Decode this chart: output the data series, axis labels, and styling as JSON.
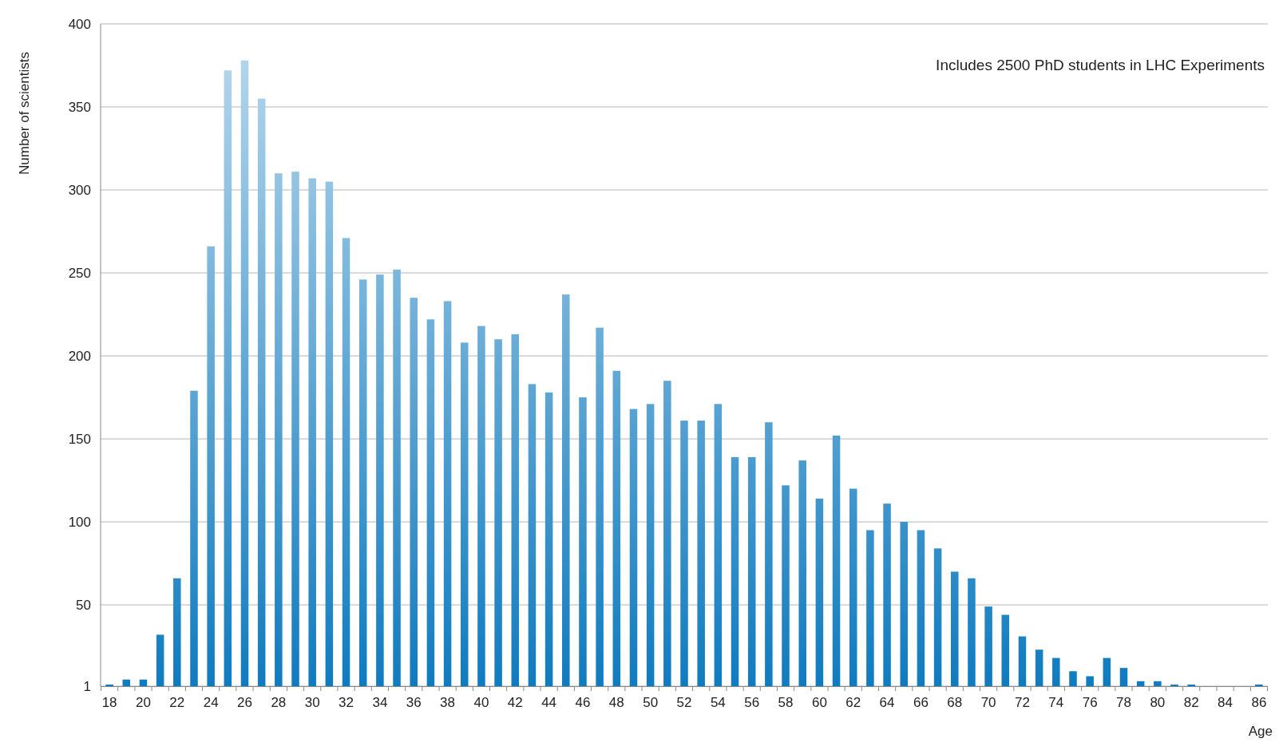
{
  "chart_data": {
    "type": "bar",
    "xlabel": "Age",
    "ylabel": "Number of scientists",
    "annotations": [
      "Includes 2500 PhD students in LHC Experiments"
    ],
    "categories": [
      "18",
      null,
      "20",
      null,
      "22",
      null,
      "24",
      null,
      "26",
      null,
      "28",
      null,
      "30",
      null,
      "32",
      null,
      "34",
      null,
      "36",
      null,
      "38",
      null,
      "40",
      null,
      "42",
      null,
      "44",
      null,
      "46",
      null,
      "48",
      null,
      "50",
      null,
      "52",
      null,
      "54",
      null,
      "56",
      null,
      "58",
      null,
      "60",
      null,
      "62",
      null,
      "64",
      null,
      "66",
      null,
      "68",
      null,
      "70",
      null,
      "72",
      null,
      "74",
      null,
      "76",
      null,
      "78",
      null,
      "80",
      null,
      "82",
      null,
      "84",
      null,
      "86"
    ],
    "values": [
      2,
      5,
      5,
      32,
      66,
      179,
      266,
      372,
      378,
      355,
      310,
      311,
      307,
      305,
      271,
      246,
      249,
      252,
      235,
      222,
      233,
      208,
      218,
      210,
      213,
      183,
      178,
      237,
      175,
      217,
      191,
      168,
      171,
      185,
      161,
      161,
      171,
      139,
      139,
      160,
      122,
      137,
      114,
      152,
      120,
      95,
      111,
      100,
      95,
      84,
      70,
      66,
      49,
      44,
      31,
      23,
      18,
      10,
      7,
      18,
      12,
      4,
      4,
      2,
      2,
      1,
      1,
      1,
      2
    ],
    "color": "#0f7bbf",
    "ylim": [
      1,
      400
    ],
    "yticks": [
      1,
      50,
      100,
      150,
      200,
      250,
      300,
      350,
      400
    ],
    "grid": "y"
  }
}
